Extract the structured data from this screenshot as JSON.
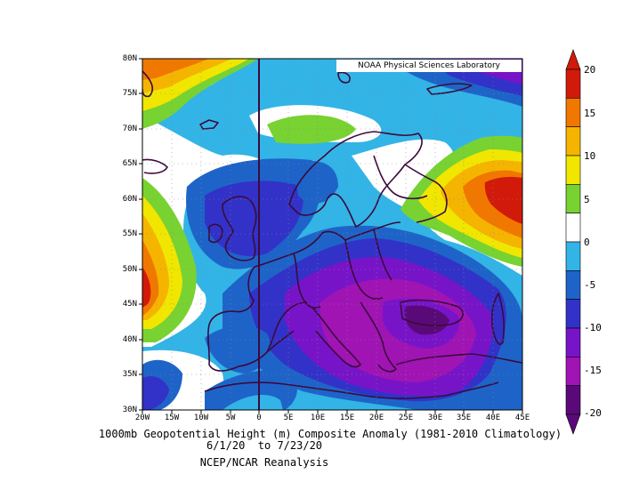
{
  "credit": "NOAA Physical Sciences Laboratory",
  "captions": {
    "line1": "1000mb Geopotential Height (m) Composite Anomaly (1981-2010 Climatology)",
    "line2": "6/1/20  to 7/23/20",
    "line3": "NCEP/NCAR Reanalysis"
  },
  "lat_labels": [
    "80N",
    "75N",
    "70N",
    "65N",
    "60N",
    "55N",
    "50N",
    "45N",
    "40N",
    "35N",
    "30N"
  ],
  "lon_labels": [
    "20W",
    "15W",
    "10W",
    "5W",
    "0",
    "5E",
    "10E",
    "15E",
    "20E",
    "25E",
    "30E",
    "35E",
    "40E",
    "45E"
  ],
  "colorbar": {
    "labels": [
      "20",
      "15",
      "10",
      "5",
      "0",
      "-5",
      "-10",
      "-15",
      "-20"
    ],
    "colors": [
      "#d21a0a",
      "#f07800",
      "#f5b400",
      "#f0e600",
      "#78d232",
      "#ffffff",
      "#32b4e6",
      "#1e64c8",
      "#3232c8",
      "#7814c8",
      "#a014b4",
      "#5a0a78"
    ]
  }
}
